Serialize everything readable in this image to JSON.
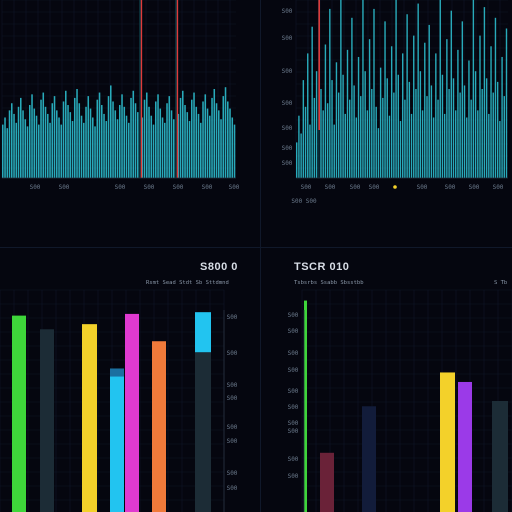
{
  "panels": {
    "bottom_left": {
      "title": "S800 0",
      "subtitle": "Rsmt Sead Stdt Sb Sttdmnd"
    },
    "bottom_right": {
      "title": "TSCR 010",
      "subtitle": "Tsbsrbs Ssabb Sbsstbb",
      "corner": "S Tb"
    }
  },
  "colors": {
    "cyan": "#2fc8d8",
    "teal_dark": "#0b3a44",
    "red": "#e03a3a",
    "green": "#3ed63a",
    "yellow": "#f3d12a",
    "magenta": "#e03ad0",
    "orange": "#f07a3a",
    "sky": "#22c4f0",
    "purple": "#9b3ae8",
    "slate": "#1c2c36",
    "navy": "#121c3a",
    "maroon": "#6a2238"
  },
  "chart_data": [
    {
      "type": "bar",
      "panel": "top-left",
      "x_tick_labels": [
        "S00",
        "S00",
        "S00",
        "S00",
        "S00",
        "S00"
      ],
      "values": [
        30,
        34,
        28,
        38,
        42,
        36,
        31,
        40,
        45,
        38,
        33,
        29,
        41,
        47,
        39,
        35,
        30,
        44,
        48,
        40,
        36,
        31,
        42,
        46,
        38,
        34,
        30,
        43,
        49,
        41,
        37,
        32,
        45,
        50,
        42,
        35,
        31,
        40,
        46,
        39,
        34,
        29,
        44,
        48,
        41,
        36,
        32,
        46,
        52,
        43,
        38,
        33,
        41,
        47,
        40,
        35,
        31,
        45,
        49,
        42,
        37,
        100,
        34,
        44,
        48,
        40,
        35,
        30,
        43,
        47,
        39,
        34,
        31,
        42,
        46,
        38,
        33,
        100,
        36,
        45,
        49,
        41,
        37,
        32,
        44,
        48,
        40,
        36,
        31,
        43,
        47,
        39,
        35,
        45,
        50,
        42,
        38,
        33,
        46,
        51,
        43,
        39,
        34,
        30
      ],
      "markers": [
        {
          "index": 61,
          "color": "red"
        },
        {
          "index": 77,
          "color": "red"
        }
      ],
      "ylim": [
        0,
        100
      ]
    },
    {
      "type": "bar",
      "panel": "top-right",
      "y_tick_labels": [
        "S00",
        "S00",
        "S00",
        "S00",
        "S00",
        "S00",
        "S00"
      ],
      "x_tick_labels": [
        "S00",
        "S00",
        "S00",
        "S00",
        "S00",
        "S00",
        "S00",
        "S00",
        "S00"
      ],
      "extra_label": "S00 S00",
      "values": [
        20,
        35,
        25,
        55,
        40,
        70,
        30,
        85,
        45,
        60,
        100,
        50,
        38,
        75,
        42,
        95,
        55,
        30,
        65,
        48,
        100,
        58,
        36,
        72,
        44,
        90,
        52,
        34,
        68,
        46,
        100,
        60,
        38,
        78,
        50,
        95,
        40,
        28,
        62,
        45,
        88,
        56,
        35,
        74,
        48,
        100,
        58,
        32,
        70,
        44,
        92,
        54,
        36,
        80,
        50,
        98,
        60,
        38,
        76,
        46,
        86,
        52,
        34,
        70,
        44,
        100,
        58,
        36,
        78,
        50,
        94,
        56,
        38,
        72,
        48,
        88,
        52,
        34,
        66,
        44,
        100,
        60,
        38,
        80,
        50,
        96,
        56,
        36,
        74,
        48,
        90,
        54,
        32,
        68,
        46,
        84
      ],
      "marker_index": 10,
      "ylim": [
        0,
        100
      ]
    },
    {
      "type": "bar",
      "panel": "bottom-left",
      "y_tick_labels": [
        "S00",
        "S00",
        "S00",
        "S00",
        "S00",
        "S00",
        "S00",
        "S00"
      ],
      "bars": [
        {
          "value": 115,
          "color": "green"
        },
        {
          "value": 107,
          "color": "slate"
        },
        {
          "value": 110,
          "color": "yellow"
        },
        {
          "value": 84,
          "color": "sky"
        },
        {
          "value": 116,
          "color": "magenta"
        },
        {
          "value": 100,
          "color": "orange"
        },
        {
          "value": 117,
          "color": "sky"
        }
      ],
      "ylim": [
        0,
        130
      ]
    },
    {
      "type": "bar",
      "panel": "bottom-right",
      "y_tick_labels": [
        "S00",
        "S00",
        "S00",
        "S00",
        "S00",
        "S00",
        "S00",
        "S00",
        "S00",
        "S00"
      ],
      "bars": [
        {
          "value": 200,
          "color": "green"
        },
        {
          "value": 56,
          "color": "maroon"
        },
        {
          "value": 100,
          "color": "navy"
        },
        {
          "value": 132,
          "color": "yellow"
        },
        {
          "value": 123,
          "color": "purple"
        },
        {
          "value": 105,
          "color": "slate"
        }
      ],
      "ylim": [
        0,
        210
      ]
    }
  ]
}
